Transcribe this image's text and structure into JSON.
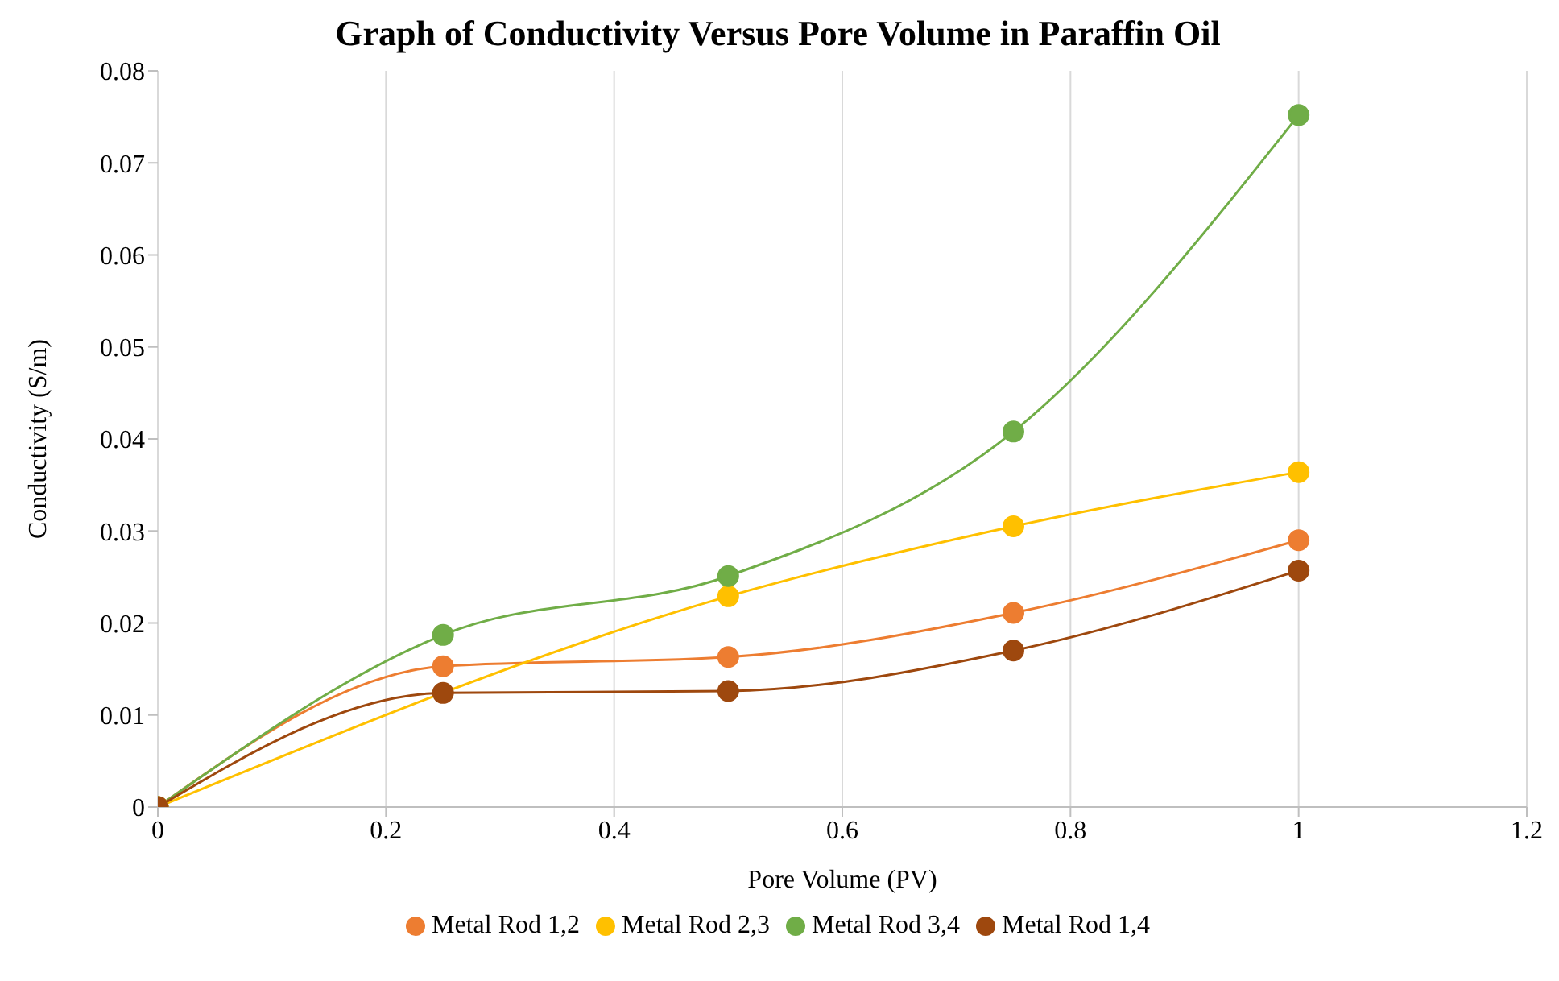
{
  "chart_data": {
    "type": "line",
    "title": "Graph of Conductivity Versus Pore Volume in Paraffin Oil",
    "xlabel": "Pore Volume (PV)",
    "ylabel": "Conductivity (S/m)",
    "x": [
      0,
      0.25,
      0.5,
      0.75,
      1
    ],
    "series": [
      {
        "name": "Metal Rod 1,2",
        "color": "#ed7d31",
        "values": [
          0,
          0.0153,
          0.0163,
          0.0211,
          0.029
        ]
      },
      {
        "name": "Metal Rod 2,3",
        "color": "#ffc000",
        "values": [
          0,
          null,
          0.0229,
          0.0305,
          0.0364
        ]
      },
      {
        "name": "Metal Rod 3,4",
        "color": "#70ad47",
        "values": [
          0,
          0.0187,
          0.0251,
          0.0408,
          0.0752
        ]
      },
      {
        "name": "Metal Rod 1,4",
        "color": "#9e480e",
        "values": [
          0,
          0.0124,
          0.0126,
          0.017,
          0.0257
        ]
      }
    ],
    "xlim": [
      0,
      1.2
    ],
    "xticks": [
      0,
      0.2,
      0.4,
      0.6,
      0.8,
      1,
      1.2
    ],
    "ylim": [
      0,
      0.08
    ],
    "yticks": [
      0,
      0.01,
      0.02,
      0.03,
      0.04,
      0.05,
      0.06,
      0.07,
      0.08
    ],
    "grid": "x",
    "legend": "bottom",
    "marker": "circle",
    "line_style": "solid"
  }
}
